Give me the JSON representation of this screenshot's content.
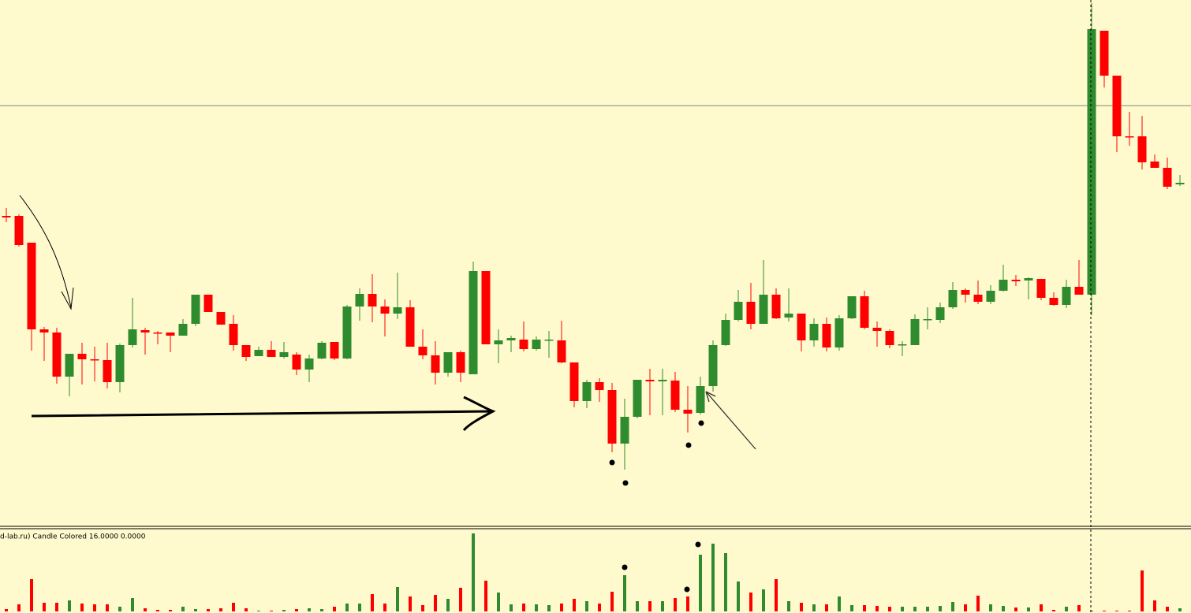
{
  "chart_data": [
    {
      "type": "candlestick",
      "up_color": "#2e8b2e",
      "down_color": "#ff0000",
      "ylim": [
        0,
        670
      ],
      "hline": 536,
      "open": [
        396,
        396,
        362,
        252,
        248,
        192,
        221,
        214,
        213,
        185,
        232,
        251,
        248,
        248,
        244,
        259,
        296,
        274,
        259,
        232,
        218,
        226,
        217,
        220,
        201,
        215,
        236,
        215,
        281,
        297,
        281,
        272,
        280,
        230,
        219,
        197,
        223,
        195,
        326,
        233,
        238,
        239,
        227,
        238,
        238,
        210,
        161,
        185,
        175,
        107,
        141,
        188,
        186,
        187,
        150,
        146,
        180,
        232,
        264,
        287,
        259,
        296,
        267,
        272,
        238,
        259,
        229,
        266,
        294,
        254,
        250,
        232,
        232,
        264,
        264,
        280,
        302,
        296,
        287,
        301,
        315,
        314,
        316,
        292,
        283,
        306,
        296,
        631,
        574,
        497,
        497,
        465,
        457,
        436
      ],
      "high": [
        406,
        398,
        362,
        255,
        254,
        221,
        235,
        230,
        235,
        234,
        292,
        254,
        250,
        248,
        265,
        296,
        296,
        274,
        270,
        232,
        230,
        237,
        236,
        223,
        220,
        237,
        236,
        283,
        304,
        322,
        290,
        324,
        289,
        252,
        237,
        223,
        225,
        338,
        326,
        252,
        244,
        262,
        243,
        250,
        263,
        210,
        188,
        190,
        184,
        164,
        188,
        202,
        202,
        198,
        180,
        192,
        238,
        272,
        302,
        311,
        340,
        304,
        304,
        272,
        266,
        267,
        270,
        294,
        301,
        262,
        252,
        237,
        271,
        280,
        286,
        312,
        304,
        314,
        308,
        334,
        321,
        318,
        316,
        299,
        315,
        340,
        666,
        631,
        574,
        528,
        523,
        474,
        470,
        448
      ],
      "low": [
        388,
        357,
        225,
        212,
        183,
        167,
        182,
        186,
        177,
        172,
        229,
        220,
        233,
        223,
        244,
        256,
        274,
        258,
        225,
        212,
        218,
        217,
        215,
        194,
        185,
        214,
        213,
        214,
        263,
        261,
        243,
        265,
        230,
        214,
        182,
        192,
        185,
        195,
        233,
        209,
        223,
        224,
        225,
        216,
        209,
        153,
        152,
        160,
        96,
        74,
        139,
        143,
        143,
        147,
        121,
        144,
        173,
        231,
        262,
        252,
        259,
        265,
        262,
        224,
        230,
        224,
        225,
        265,
        252,
        230,
        228,
        218,
        232,
        252,
        260,
        278,
        286,
        284,
        284,
        300,
        307,
        290,
        289,
        282,
        279,
        296,
        270,
        559,
        477,
        485,
        455,
        457,
        430,
        434
      ],
      "close": [
        394,
        359,
        252,
        248,
        192,
        221,
        214,
        213,
        185,
        232,
        252,
        248,
        247,
        244,
        259,
        296,
        274,
        258,
        232,
        217,
        226,
        217,
        223,
        201,
        215,
        235,
        215,
        281,
        297,
        281,
        272,
        280,
        230,
        219,
        197,
        223,
        197,
        326,
        233,
        238,
        241,
        227,
        239,
        239,
        210,
        161,
        185,
        175,
        107,
        141,
        188,
        186,
        188,
        150,
        145,
        180,
        232,
        264,
        287,
        259,
        296,
        266,
        272,
        238,
        259,
        229,
        266,
        294,
        254,
        250,
        232,
        233,
        265,
        265,
        280,
        302,
        296,
        287,
        301,
        315,
        313,
        317,
        292,
        283,
        306,
        296,
        633,
        574,
        497,
        496,
        464,
        457,
        433,
        438
      ]
    },
    {
      "type": "bar",
      "indicator_label": "d-lab.ru) Candle Colored 16.0000 0.0000",
      "ylim": [
        0,
        105
      ],
      "values": [
        3,
        9,
        41,
        11,
        11,
        14,
        10,
        9,
        9,
        6,
        17,
        4,
        2,
        2,
        6,
        3,
        3,
        4,
        11,
        4,
        1,
        1,
        2,
        3,
        4,
        3,
        6,
        10,
        10,
        22,
        10,
        31,
        19,
        8,
        21,
        16,
        30,
        99,
        39,
        24,
        9,
        10,
        9,
        8,
        10,
        16,
        13,
        10,
        25,
        46,
        13,
        13,
        13,
        17,
        19,
        72,
        86,
        74,
        38,
        24,
        28,
        41,
        13,
        11,
        9,
        9,
        19,
        8,
        8,
        7,
        6,
        6,
        6,
        6,
        7,
        12,
        9,
        20,
        9,
        7,
        5,
        5,
        9,
        2,
        6,
        8,
        1,
        1,
        1,
        1,
        52,
        14,
        6,
        4
      ]
    }
  ]
}
